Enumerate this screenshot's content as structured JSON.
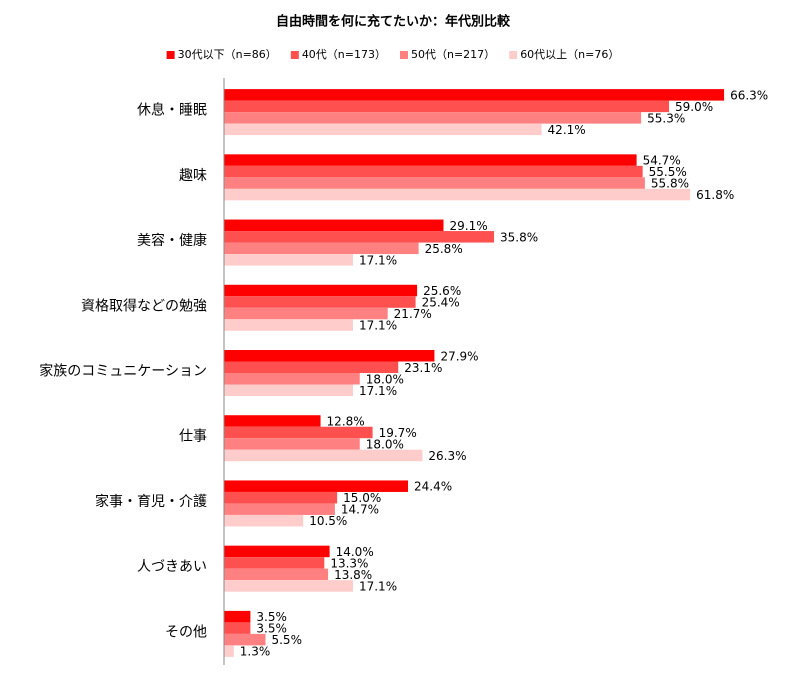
{
  "chart_data": {
    "type": "hbar",
    "title": "自由時間を何に充てたいか：年代別比較",
    "categories": [
      "休息・睡眠",
      "趣味",
      "美容・健康",
      "資格取得などの勉強",
      "家族のコミュニケーション",
      "仕事",
      "家事・育児・介護",
      "人づきあい",
      "その他"
    ],
    "xlim": [
      0,
      70
    ],
    "legend": "top",
    "series": [
      {
        "name": "30代以下（n=86）",
        "color": "#ff0000",
        "values": [
          66.3,
          54.7,
          29.1,
          25.6,
          27.9,
          12.8,
          24.4,
          14.0,
          3.5
        ],
        "value_labels": [
          "66.3%",
          "54.7%",
          "29.1%",
          "25.6%",
          "27.9%",
          "12.8%",
          "24.4%",
          "14.0%",
          "3.5%"
        ]
      },
      {
        "name": "40代（n=173）",
        "color": "#ff5050",
        "values": [
          59.0,
          55.5,
          35.8,
          25.4,
          23.1,
          19.7,
          15.0,
          13.3,
          3.5
        ],
        "value_labels": [
          "59.0%",
          "55.5%",
          "35.8%",
          "25.4%",
          "23.1%",
          "19.7%",
          "15.0%",
          "13.3%",
          "3.5%"
        ]
      },
      {
        "name": "50代（n=217）",
        "color": "#ff8080",
        "values": [
          55.3,
          55.8,
          25.8,
          21.7,
          18.0,
          18.0,
          14.7,
          13.8,
          5.5
        ],
        "value_labels": [
          "55.3%",
          "55.8%",
          "25.8%",
          "21.7%",
          "18.0%",
          "18.0%",
          "14.7%",
          "13.8%",
          "5.5%"
        ]
      },
      {
        "name": "60代以上（n=76）",
        "color": "#ffcccc",
        "values": [
          42.1,
          61.8,
          17.1,
          17.1,
          17.1,
          26.3,
          10.5,
          17.1,
          1.3
        ],
        "value_labels": [
          "42.1%",
          "61.8%",
          "17.1%",
          "17.1%",
          "17.1%",
          "26.3%",
          "10.5%",
          "17.1%",
          "1.3%"
        ]
      }
    ]
  }
}
